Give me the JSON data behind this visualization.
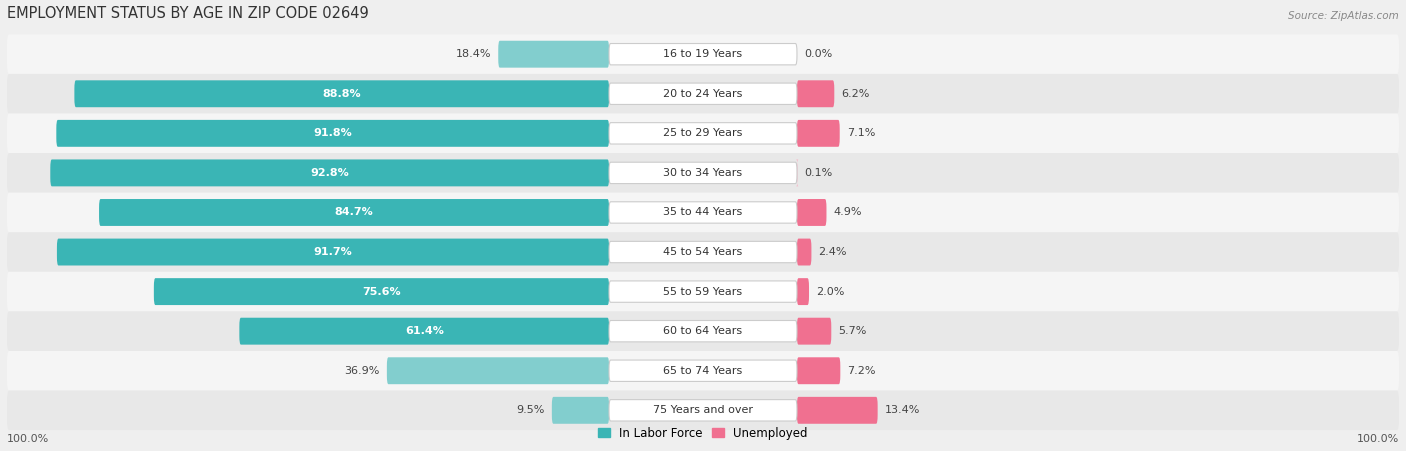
{
  "title": "EMPLOYMENT STATUS BY AGE IN ZIP CODE 02649",
  "source": "Source: ZipAtlas.com",
  "categories": [
    "16 to 19 Years",
    "20 to 24 Years",
    "25 to 29 Years",
    "30 to 34 Years",
    "35 to 44 Years",
    "45 to 54 Years",
    "55 to 59 Years",
    "60 to 64 Years",
    "65 to 74 Years",
    "75 Years and over"
  ],
  "labor_force": [
    18.4,
    88.8,
    91.8,
    92.8,
    84.7,
    91.7,
    75.6,
    61.4,
    36.9,
    9.5
  ],
  "unemployed": [
    0.0,
    6.2,
    7.1,
    0.1,
    4.9,
    2.4,
    2.0,
    5.7,
    7.2,
    13.4
  ],
  "labor_force_color": "#3ab5b5",
  "labor_force_color_light": "#82cece",
  "unemployed_color": "#f07090",
  "unemployed_color_light": "#f5b8c8",
  "background_color": "#efefef",
  "row_bg_light": "#f5f5f5",
  "row_bg_dark": "#e8e8e8",
  "title_fontsize": 10.5,
  "label_fontsize": 8.0,
  "source_fontsize": 7.5,
  "axis_label_fontsize": 8.0,
  "legend_labor": "In Labor Force",
  "legend_unemployed": "Unemployed"
}
